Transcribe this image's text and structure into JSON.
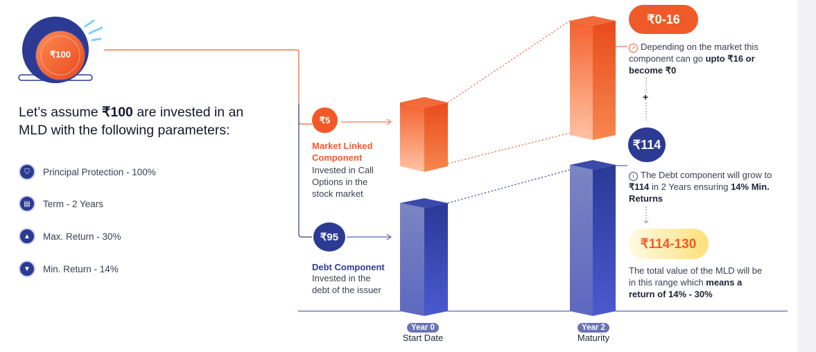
{
  "coin": {
    "label": "₹100"
  },
  "headline": {
    "prefix": "Let’s assume ",
    "amount": "₹100",
    "suffix": " are invested in an MLD with the following parameters:"
  },
  "parameters": [
    {
      "icon": "shield-icon",
      "label": "Principal Protection - 100%"
    },
    {
      "icon": "calendar-icon",
      "label": "Term - 2 Years"
    },
    {
      "icon": "arrow-up-icon",
      "label": "Max. Return - 30%"
    },
    {
      "icon": "arrow-down-icon",
      "label": "Min. Return - 14%"
    }
  ],
  "market_component": {
    "amount": "₹5",
    "title_line1": "Market Linked",
    "title_line2": "Component",
    "desc_line1": "Invested in Call",
    "desc_line2": "Options in the",
    "desc_line3": "stock market"
  },
  "debt_component": {
    "amount": "₹95",
    "title": "Debt Component",
    "desc_line1": "Invested in the",
    "desc_line2": "debt of the issuer"
  },
  "maturity_market": {
    "range": "₹0-16",
    "note_line1": "Depending on the market this",
    "note_line2_prefix": "component can go ",
    "note_line2_bold": "upto ₹16 or",
    "note_line3_bold": "become ₹0"
  },
  "plus_sign": "+",
  "maturity_debt": {
    "amount": "₹114",
    "note_line1": "The Debt component will grow to",
    "note_line2_bold_a": "₹114",
    "note_line2_mid": " in 2 Years ensuring ",
    "note_line2_bold_b": "14% Min.",
    "note_line3_bold": "Returns"
  },
  "total": {
    "range": "₹114-130",
    "note_line1": "The total value of the MLD will be",
    "note_line2_prefix": "in this range which ",
    "note_line2_bold": "means a",
    "note_line3_bold": "return of 14% - 30%"
  },
  "timeline": {
    "start_pill": "Year 0",
    "start_caption": "Start Date",
    "end_pill": "Year 2",
    "end_caption": "Maturity"
  },
  "colors": {
    "orange": "#f05a28",
    "orange_light": "#ffb08c",
    "navy": "#2c3a93",
    "blue_bar": "#4e5fc6",
    "blue_light": "#7b87c9",
    "yellow": "#fde9a0"
  }
}
